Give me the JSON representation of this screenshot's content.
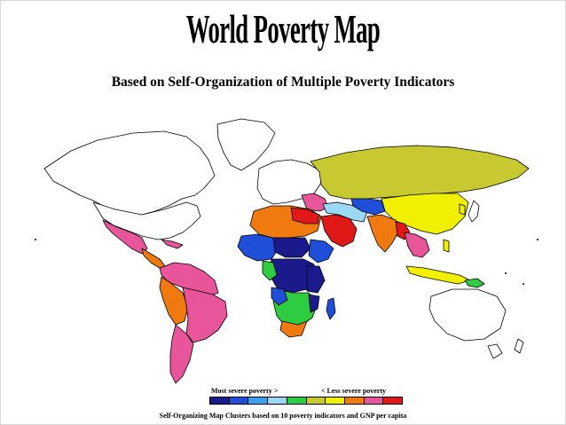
{
  "title": "World Poverty Map",
  "subtitle": "Based on Self-Organization of Multiple Poverty Indicators",
  "legend": {
    "left_label": "Most severe poverty  >",
    "right_label": "<  Less severe poverty",
    "colors": [
      "#1a1a8c",
      "#1f4fd8",
      "#3aa0f0",
      "#9ad8f5",
      "#2ecc40",
      "#c8c830",
      "#f0f000",
      "#f07a10",
      "#e8559a",
      "#e01818"
    ]
  },
  "caption": "Self-Organizing Map Clusters based on 10 poverty indicators and GNP per capita",
  "colors": {
    "ocean": "#ffffff",
    "outline": "#000000",
    "no_data": "#ffffff"
  }
}
